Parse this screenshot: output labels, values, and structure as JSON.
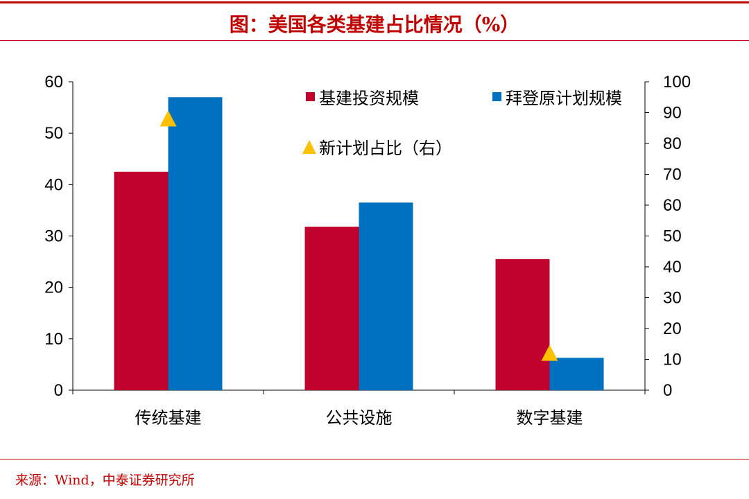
{
  "title": "图：美国各类基建占比情况（%）",
  "source": "来源：Wind，中泰证券研究所",
  "chart_data": {
    "type": "bar",
    "title": "图：美国各类基建占比情况（%）",
    "categories": [
      "传统基建",
      "公共设施",
      "数字基建"
    ],
    "series": [
      {
        "name": "基建投资规模",
        "axis": "left",
        "type": "bar",
        "color": "#c0002d",
        "values": [
          42.5,
          31.8,
          25.5
        ]
      },
      {
        "name": "拜登原计划规模",
        "axis": "left",
        "type": "bar",
        "color": "#0070c0",
        "values": [
          57.0,
          36.5,
          6.3
        ]
      },
      {
        "name": "新计划占比（右）",
        "axis": "right",
        "type": "marker-triangle",
        "color": "#ffc000",
        "values": [
          88,
          null,
          12
        ]
      }
    ],
    "ylim": [
      0,
      60
    ],
    "yticks": [
      0,
      10,
      20,
      30,
      40,
      50,
      60
    ],
    "y2lim": [
      0,
      100
    ],
    "y2ticks": [
      0,
      10,
      20,
      30,
      40,
      50,
      60,
      70,
      80,
      90,
      100
    ],
    "legend": "top-right",
    "grid": false
  }
}
